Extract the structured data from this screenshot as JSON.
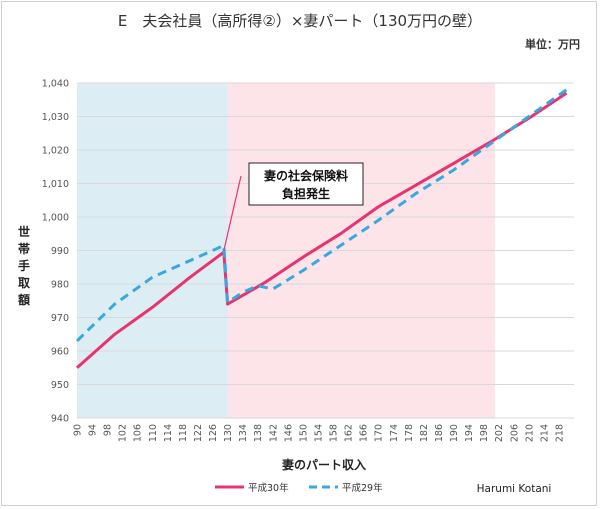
{
  "chart_data": {
    "type": "line",
    "title": "E　夫会社員（高所得②）×妻パート（130万円の壁）",
    "unit_label": "単位：万円",
    "xlabel": "妻のパート収入",
    "ylabel": "世帯手取額",
    "credit": "Harumi Kotani",
    "annotation": [
      "妻の社会保険料",
      "負担発生"
    ],
    "xlim": [
      90,
      222
    ],
    "ylim": [
      940,
      1040
    ],
    "y_ticks": [
      940,
      950,
      960,
      970,
      980,
      990,
      1000,
      1010,
      1020,
      1030,
      1040
    ],
    "y_tick_labels": [
      "940",
      "950",
      "960",
      "970",
      "980",
      "990",
      "1,000",
      "1,010",
      "1,020",
      "1,030",
      "1,040"
    ],
    "x_ticks": [
      90,
      94,
      98,
      102,
      106,
      110,
      114,
      118,
      122,
      126,
      130,
      134,
      138,
      142,
      146,
      150,
      154,
      158,
      162,
      166,
      170,
      174,
      178,
      182,
      186,
      190,
      194,
      198,
      202,
      206,
      210,
      214,
      218
    ],
    "regions": [
      {
        "from": 90,
        "to": 130,
        "color": "#dcedf3"
      },
      {
        "from": 130,
        "to": 201,
        "color": "#fce4e8"
      }
    ],
    "annotation_target": {
      "x": 129,
      "y": 990
    },
    "series": [
      {
        "name": "平成30年",
        "color": "#e8336e",
        "dash": false,
        "points": [
          [
            90,
            955
          ],
          [
            100,
            965
          ],
          [
            110,
            973
          ],
          [
            120,
            982
          ],
          [
            129,
            989.5
          ],
          [
            130,
            974
          ],
          [
            140,
            980.5
          ],
          [
            150,
            988
          ],
          [
            160,
            995
          ],
          [
            170,
            1003
          ],
          [
            180,
            1009.5
          ],
          [
            190,
            1016
          ],
          [
            200,
            1022.5
          ],
          [
            210,
            1029.5
          ],
          [
            220,
            1037
          ]
        ]
      },
      {
        "name": "平成29年",
        "color": "#3aa8e0",
        "dash": true,
        "points": [
          [
            90,
            963
          ],
          [
            100,
            974
          ],
          [
            110,
            982
          ],
          [
            120,
            987
          ],
          [
            129,
            991.5
          ],
          [
            130,
            974.5
          ],
          [
            134,
            977.5
          ],
          [
            138,
            979.5
          ],
          [
            142,
            978.5
          ],
          [
            150,
            984
          ],
          [
            160,
            991.5
          ],
          [
            170,
            999
          ],
          [
            180,
            1007
          ],
          [
            190,
            1014
          ],
          [
            200,
            1022
          ],
          [
            210,
            1030
          ],
          [
            220,
            1038
          ]
        ]
      }
    ],
    "legend_position": "bottom-center"
  }
}
